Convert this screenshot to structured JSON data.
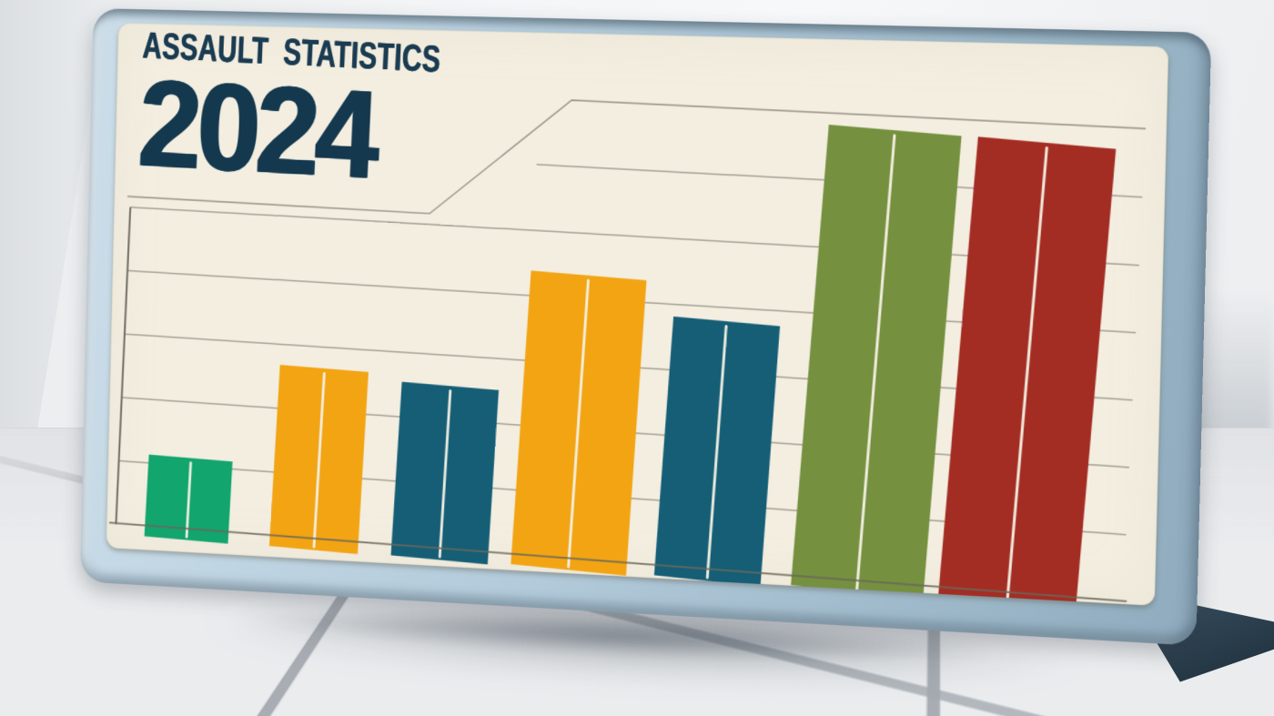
{
  "board": {
    "title": "ASSAULT STATISTICS",
    "year": "2024",
    "title_color": "#1a3b51",
    "year_color": "#14384e",
    "surface_color": "#f3eee0",
    "frame_color": "#aec6d7",
    "stand_leg_color": "#2b3f4e"
  },
  "scene": {
    "wall_color": "#f2f4f6",
    "floor_tile_color": "#eaecee",
    "grout_color": "#c5c9cd"
  },
  "chart_data": {
    "type": "bar",
    "title": "ASSAULT STATISTICS",
    "subtitle": "2024",
    "categories": [
      "",
      "",
      "",
      "",
      "",
      "",
      ""
    ],
    "series": [
      {
        "name": "assaults",
        "values": [
          16,
          38,
          36,
          62,
          54,
          97,
          96
        ]
      }
    ],
    "bar_colors": [
      "#12a56e",
      "#f2a413",
      "#155e76",
      "#f2a413",
      "#155e76",
      "#75903f",
      "#a42d23"
    ],
    "value_note": "no numeric axis labels shown; values estimated as percent of plot height",
    "xlabel": "",
    "ylabel": "",
    "ylim": [
      0,
      100
    ],
    "grid": true,
    "gridline_count": 8,
    "legend": false
  }
}
